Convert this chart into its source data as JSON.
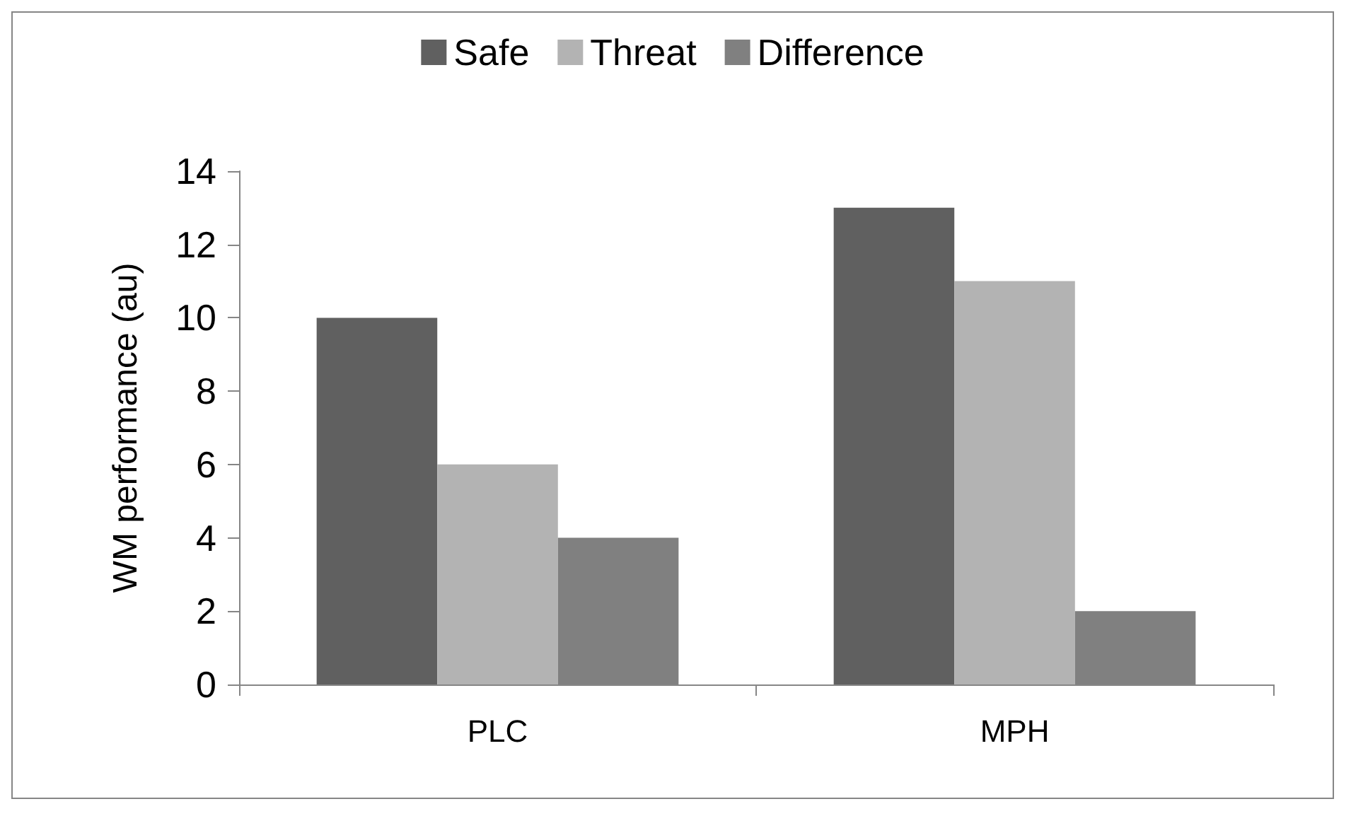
{
  "chart_data": {
    "type": "bar",
    "ylabel": "WM performance (au)",
    "categories": [
      "PLC",
      "MPH"
    ],
    "series": [
      {
        "name": "Safe",
        "color": "#606060",
        "values": [
          10,
          13
        ]
      },
      {
        "name": "Threat",
        "color": "#b3b3b3",
        "values": [
          6,
          11
        ]
      },
      {
        "name": "Difference",
        "color": "#808080",
        "values": [
          4,
          2
        ]
      }
    ],
    "ylim": [
      0,
      14
    ],
    "yticks": [
      0,
      2,
      4,
      6,
      8,
      10,
      12,
      14
    ],
    "grid": false,
    "legend": "top"
  }
}
